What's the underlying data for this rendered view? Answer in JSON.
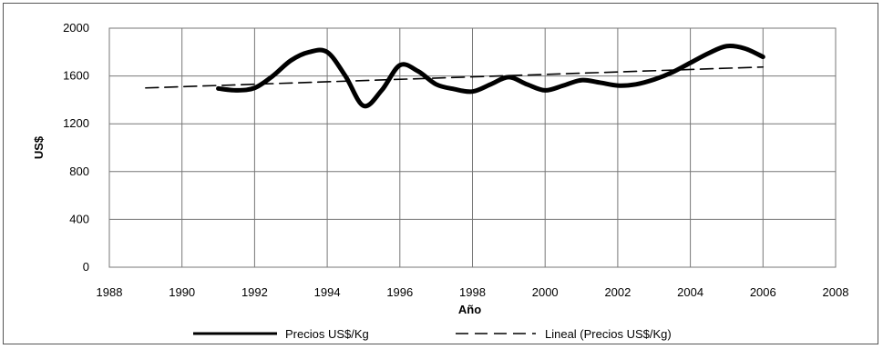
{
  "chart_data": {
    "type": "line",
    "title": "",
    "xlabel": "Año",
    "ylabel": "US$",
    "xlim": [
      1988,
      2008
    ],
    "ylim": [
      0,
      2000
    ],
    "xticks": [
      1988,
      1990,
      1992,
      1994,
      1996,
      1998,
      2000,
      2002,
      2004,
      2006,
      2008
    ],
    "yticks": [
      0,
      400,
      800,
      1200,
      1600,
      2000
    ],
    "grid": true,
    "legend_position": "bottom",
    "series": [
      {
        "name": "Precios US$/Kg",
        "style": "solid",
        "color": "#000000",
        "x": [
          1991,
          1991.5,
          1992,
          1992.5,
          1993,
          1993.5,
          1994,
          1994.5,
          1995,
          1995.5,
          1996,
          1996.5,
          1997,
          1997.5,
          1998,
          1998.5,
          1999,
          1999.5,
          2000,
          2000.5,
          2001,
          2001.5,
          2002,
          2002.5,
          2003,
          2003.5,
          2004,
          2004.5,
          2005,
          2005.5,
          2006
        ],
        "y": [
          1495,
          1480,
          1500,
          1600,
          1730,
          1800,
          1800,
          1600,
          1350,
          1480,
          1690,
          1640,
          1530,
          1490,
          1470,
          1530,
          1590,
          1530,
          1480,
          1520,
          1565,
          1545,
          1520,
          1530,
          1570,
          1630,
          1710,
          1790,
          1850,
          1830,
          1760
        ]
      },
      {
        "name": "Lineal (Precios US$/Kg)",
        "style": "dashed",
        "color": "#000000",
        "x": [
          1989,
          2006
        ],
        "y": [
          1500,
          1675
        ]
      }
    ]
  }
}
